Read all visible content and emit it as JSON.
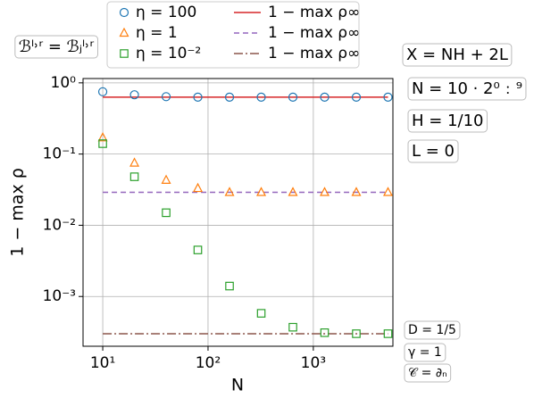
{
  "chart_data": {
    "type": "scatter",
    "xlabel": "N",
    "ylabel": "1 − max ρ",
    "xscale": "log",
    "yscale": "log",
    "grid": true,
    "xlim": [
      6.5,
      5700
    ],
    "ylim": [
      0.0002,
      1.15
    ],
    "xticks": [
      {
        "value": 10,
        "label": "10¹"
      },
      {
        "value": 100,
        "label": "10²"
      },
      {
        "value": 1000,
        "label": "10³"
      }
    ],
    "yticks": [
      {
        "value": 0.001,
        "label": "10⁻³"
      },
      {
        "value": 0.01,
        "label": "10⁻²"
      },
      {
        "value": 0.1,
        "label": "10⁻¹"
      },
      {
        "value": 1,
        "label": "10⁰"
      }
    ],
    "x": [
      10,
      20,
      40,
      80,
      160,
      320,
      640,
      1280,
      2560,
      5120
    ],
    "series": [
      {
        "name": "η = 100",
        "color": "#1f77b4",
        "marker": "circle",
        "values": [
          0.75,
          0.68,
          0.64,
          0.63,
          0.63,
          0.63,
          0.63,
          0.63,
          0.63,
          0.63
        ]
      },
      {
        "name": "η = 1",
        "color": "#ff7f0e",
        "marker": "triangle",
        "values": [
          0.17,
          0.075,
          0.043,
          0.033,
          0.029,
          0.029,
          0.029,
          0.029,
          0.029,
          0.029
        ]
      },
      {
        "name": "η = 10⁻²",
        "color": "#2ca02c",
        "marker": "square",
        "values": [
          0.14,
          0.048,
          0.015,
          0.0045,
          0.0014,
          0.00058,
          0.00037,
          0.00031,
          0.0003,
          0.0003
        ]
      }
    ],
    "lines": [
      {
        "name": "1 − max ρ∞",
        "color": "#d62728",
        "dash": "none",
        "x": [
          10,
          5120
        ],
        "values": [
          0.63,
          0.63
        ]
      },
      {
        "name": "1 − max ρ∞",
        "color": "#9467bd",
        "dash": "6 4",
        "x": [
          10,
          5120
        ],
        "values": [
          0.029,
          0.029
        ]
      },
      {
        "name": "1 − max ρ∞",
        "color": "#8c564b",
        "dash": "10 3 2 3",
        "x": [
          10,
          5120
        ],
        "values": [
          0.0003,
          0.0003
        ]
      }
    ],
    "annotations": [
      "ℬˡ˒ʳ = ℬⱼˡ˒ʳ",
      "X = NH + 2L",
      "N = 10 · 2⁰﹕⁹",
      "H = 1/10",
      "L = 0",
      "D = 1/5",
      "γ = 1",
      "𝒞 = ∂ₙ"
    ]
  }
}
